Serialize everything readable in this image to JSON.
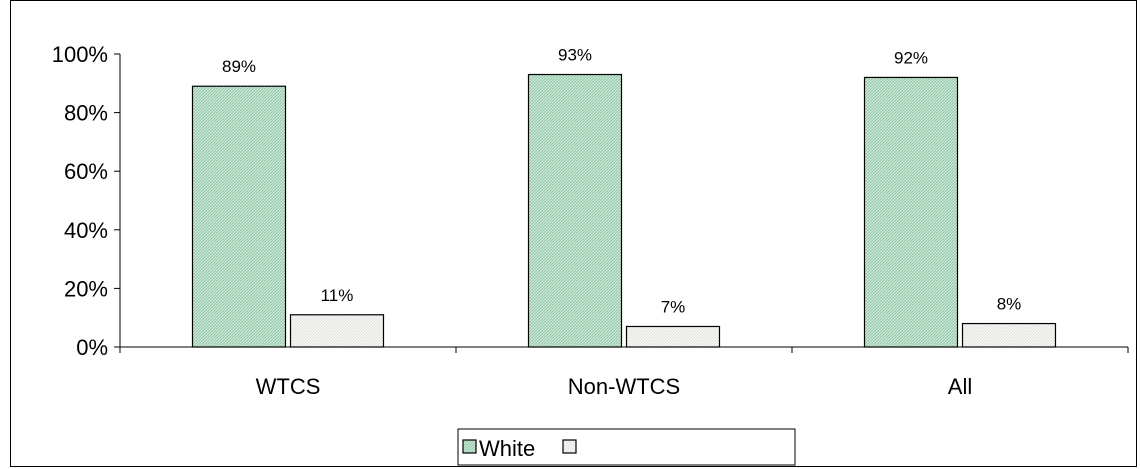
{
  "chart_data": {
    "type": "bar",
    "categories": [
      "WTCS",
      "Non-WTCS",
      "All"
    ],
    "series": [
      {
        "name": "White",
        "values": [
          89,
          93,
          92
        ],
        "labels": [
          "89%",
          "93%",
          "92%"
        ],
        "color": "#b9e0c8"
      },
      {
        "name": "",
        "values": [
          11,
          7,
          8
        ],
        "labels": [
          "11%",
          "7%",
          "8%"
        ],
        "color": "#f2f4f1"
      }
    ],
    "ylim": [
      0,
      100
    ],
    "yticks": [
      0,
      20,
      40,
      60,
      80,
      100
    ],
    "ytick_labels": [
      "0%",
      "20%",
      "40%",
      "60%",
      "80%",
      "100%"
    ],
    "title": "",
    "xlabel": "",
    "ylabel": "",
    "grid": false,
    "legend_position": "bottom"
  }
}
